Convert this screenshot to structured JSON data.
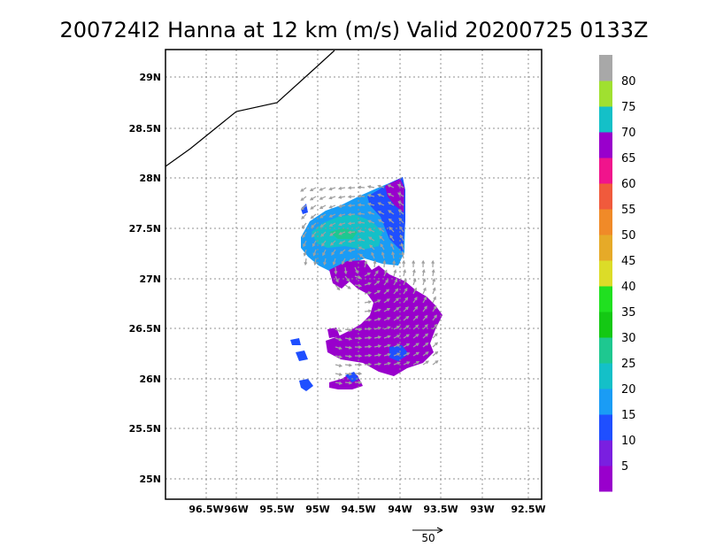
{
  "title": "200724I2 Hanna at 12 km (m/s) Valid 20200725 0133Z",
  "lon_ticks": [
    "96.5W",
    "96W",
    "95.5W",
    "95W",
    "94.5W",
    "94W",
    "93.5W",
    "93W",
    "92.5W"
  ],
  "lat_ticks": [
    "29N",
    "28.5N",
    "28N",
    "27.5N",
    "27N",
    "26.5N",
    "26N",
    "25.5N",
    "25N"
  ],
  "colorbar": {
    "labels": [
      "5",
      "10",
      "15",
      "20",
      "25",
      "30",
      "35",
      "40",
      "45",
      "50",
      "55",
      "60",
      "65",
      "70",
      "75",
      "80"
    ],
    "colors": [
      "#9900cc",
      "#7a1fe0",
      "#1f4fff",
      "#1a9cf5",
      "#14c0c8",
      "#1ec890",
      "#14c814",
      "#20e020",
      "#dcdc28",
      "#e6aa28",
      "#f08a28",
      "#f05a3c",
      "#f0148c",
      "#9900cc",
      "#14c0c8",
      "#a0e030",
      "#a8a8a8"
    ]
  },
  "reference_vector": {
    "label": "50"
  },
  "colors": {
    "purple": "#9900cc",
    "blue": "#1f4fff",
    "cyan": "#14c0c8",
    "lightblue": "#1a9cf5",
    "green": "#1ec890",
    "arrow": "#a0a0a0"
  }
}
